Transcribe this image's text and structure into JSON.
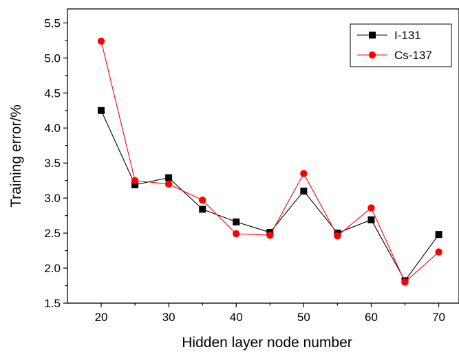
{
  "chart_data": {
    "type": "line",
    "title": "",
    "xlabel": "Hidden layer node number",
    "ylabel": "Training error/%",
    "x": [
      20,
      25,
      30,
      35,
      40,
      45,
      50,
      55,
      60,
      65,
      70
    ],
    "xlim": [
      15,
      73
    ],
    "ylim": [
      1.5,
      5.7
    ],
    "xticks": [
      20,
      30,
      40,
      50,
      60,
      70
    ],
    "xtick_labels": [
      "20",
      "30",
      "40",
      "50",
      "60",
      "70"
    ],
    "yticks": [
      1.5,
      2.0,
      2.5,
      3.0,
      3.5,
      4.0,
      4.5,
      5.0,
      5.5
    ],
    "ytick_labels": [
      "1.5",
      "2.0",
      "2.5",
      "3.0",
      "3.5",
      "4.0",
      "4.5",
      "5.0",
      "5.5"
    ],
    "grid": false,
    "legend_position": "top-right",
    "series": [
      {
        "name": "I-131",
        "color": "#000000",
        "marker": "square",
        "values": [
          4.25,
          3.19,
          3.29,
          2.84,
          2.66,
          2.51,
          3.1,
          2.5,
          2.69,
          1.82,
          2.48
        ]
      },
      {
        "name": "Cs-137",
        "color": "#ff0000",
        "marker": "circle",
        "values": [
          5.24,
          3.25,
          3.2,
          2.97,
          2.49,
          2.47,
          3.35,
          2.46,
          2.86,
          1.8,
          2.23
        ]
      }
    ]
  }
}
